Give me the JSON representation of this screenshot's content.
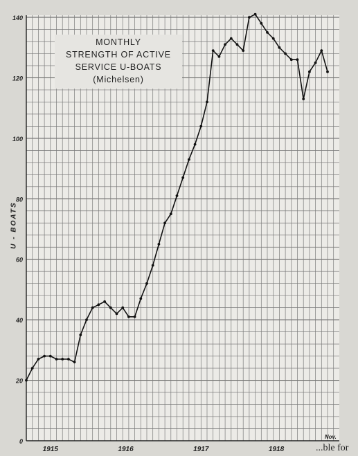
{
  "chart_data": {
    "type": "line",
    "title_lines": [
      "MONTHLY",
      "STRENGTH OF ACTIVE",
      "SERVICE U-BOATS",
      "(Michelsen)"
    ],
    "ylabel": "U - BOATS",
    "xlabel": "",
    "ylim": [
      0,
      140
    ],
    "y_ticks": [
      0,
      20,
      40,
      60,
      80,
      100,
      120,
      140
    ],
    "x_tick_labels": [
      "1915",
      "1916",
      "1917",
      "1918",
      "Nov."
    ],
    "grid": true,
    "series": [
      {
        "values": [
          20,
          24,
          27,
          28,
          28,
          27,
          27,
          27,
          26,
          35,
          40,
          44,
          45,
          46,
          44,
          42,
          44,
          41,
          41,
          47,
          52,
          58,
          65,
          72,
          75,
          81,
          87,
          93,
          98,
          104,
          112,
          129,
          127,
          131,
          133,
          131,
          129,
          140,
          141,
          138,
          135,
          133,
          130,
          128,
          126,
          126,
          113,
          122,
          125,
          129,
          122
        ]
      }
    ],
    "footer_fragment": "...ble for"
  }
}
